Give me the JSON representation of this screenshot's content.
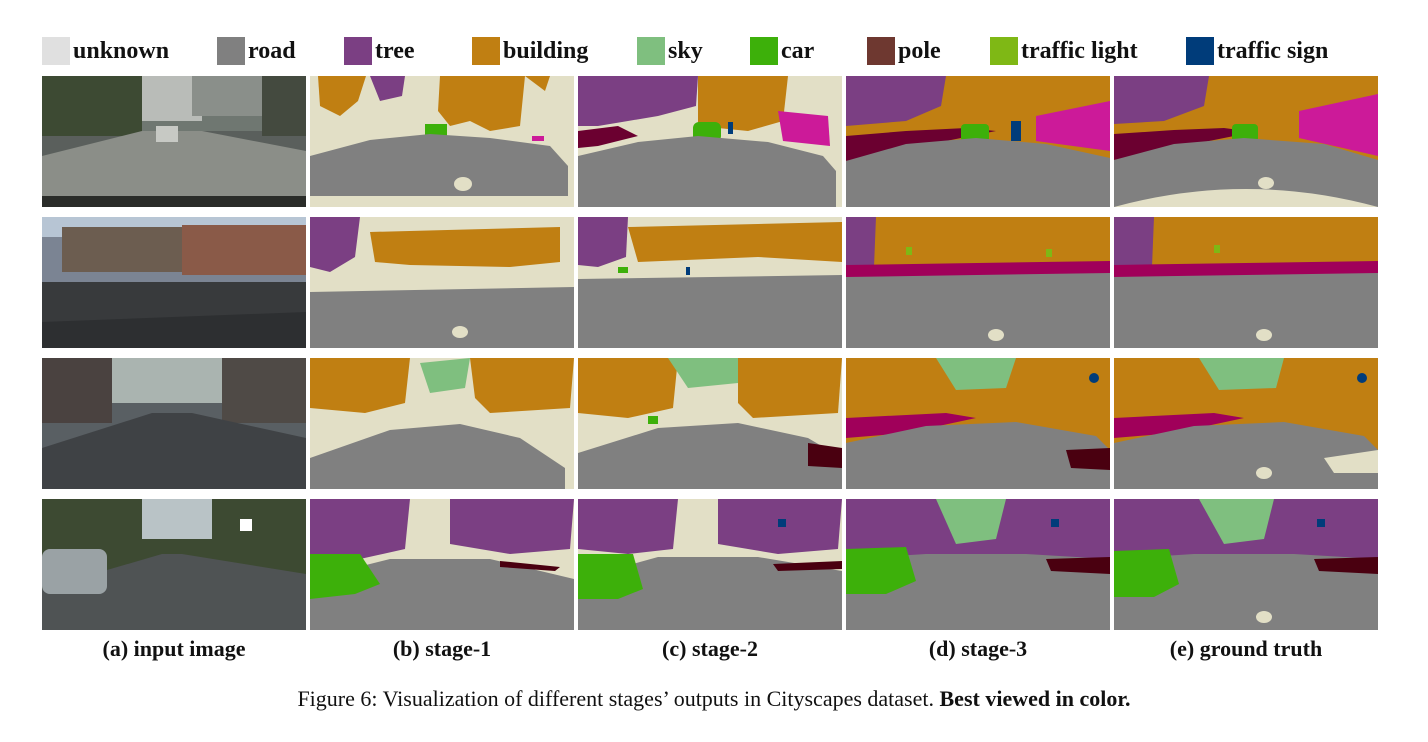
{
  "legend": [
    {
      "label": "unknown",
      "color": "#e0e0e0"
    },
    {
      "label": "road",
      "color": "#808080"
    },
    {
      "label": "tree",
      "color": "#7b3f83"
    },
    {
      "label": "building",
      "color": "#c07f12"
    },
    {
      "label": "sky",
      "color": "#7fbf7f"
    },
    {
      "label": "car",
      "color": "#3db00a"
    },
    {
      "label": "pole",
      "color": "#6e3830"
    },
    {
      "label": "traffic light",
      "color": "#7fb815"
    },
    {
      "label": "traffic sign",
      "color": "#003c7a"
    }
  ],
  "columns": [
    "(a) input image",
    "(b) stage-1",
    "(c) stage-2",
    "(d) stage-3",
    "(e) ground truth"
  ],
  "caption": {
    "prefix": "Figure 6:  Visualization of different stages’ outputs in Cityscapes dataset. ",
    "bold": "Best viewed in color."
  },
  "colors": {
    "unknown_bg": "#e2dfc6",
    "road": "#808080",
    "tree": "#7b3f83",
    "building": "#c07f12",
    "sky": "#7fbf7f",
    "car": "#3db00a",
    "sidewalk": "#a0005a",
    "wall": "#cc1a99",
    "person": "#6b6a2e",
    "dark": "#4a0010"
  }
}
